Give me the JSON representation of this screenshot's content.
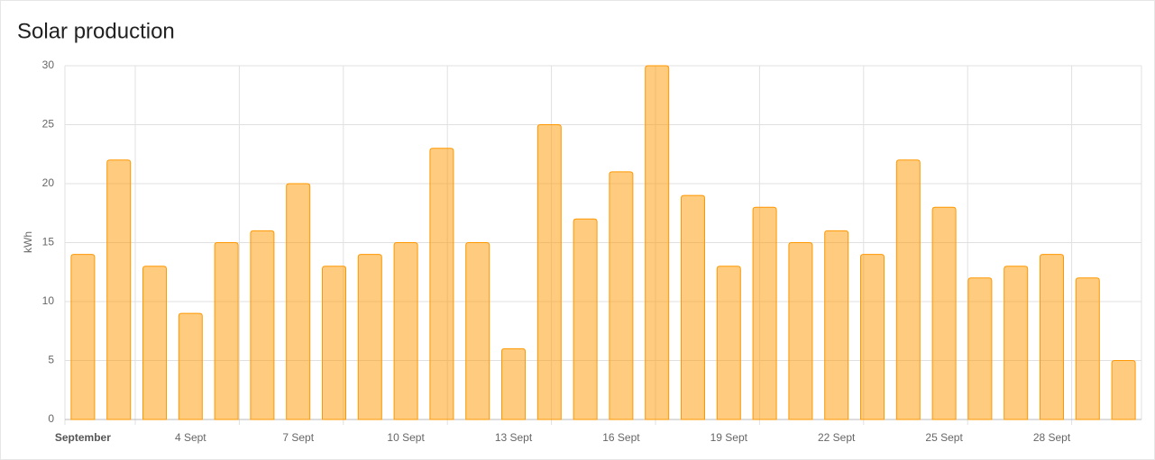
{
  "chart_data": {
    "type": "bar",
    "title": "Solar production",
    "y_label": "kWh",
    "categories": [
      "September",
      null,
      null,
      "4 Sept",
      null,
      null,
      "7 Sept",
      null,
      null,
      "10 Sept",
      null,
      null,
      "13 Sept",
      null,
      null,
      "16 Sept",
      null,
      null,
      "19 Sept",
      null,
      null,
      "22 Sept",
      null,
      null,
      "25 Sept",
      null,
      null,
      "28 Sept",
      null,
      null
    ],
    "values": [
      14,
      22,
      13,
      9,
      15,
      16,
      20,
      13,
      14,
      15,
      23,
      15,
      6,
      25,
      17,
      21,
      30,
      19,
      13,
      18,
      15,
      16,
      14,
      22,
      18,
      12,
      13,
      14,
      12,
      5
    ],
    "color": "#ff9800",
    "ylim": [
      0,
      30
    ],
    "yticks": [
      0,
      5,
      10,
      15,
      20,
      25,
      30
    ],
    "grid": true
  }
}
